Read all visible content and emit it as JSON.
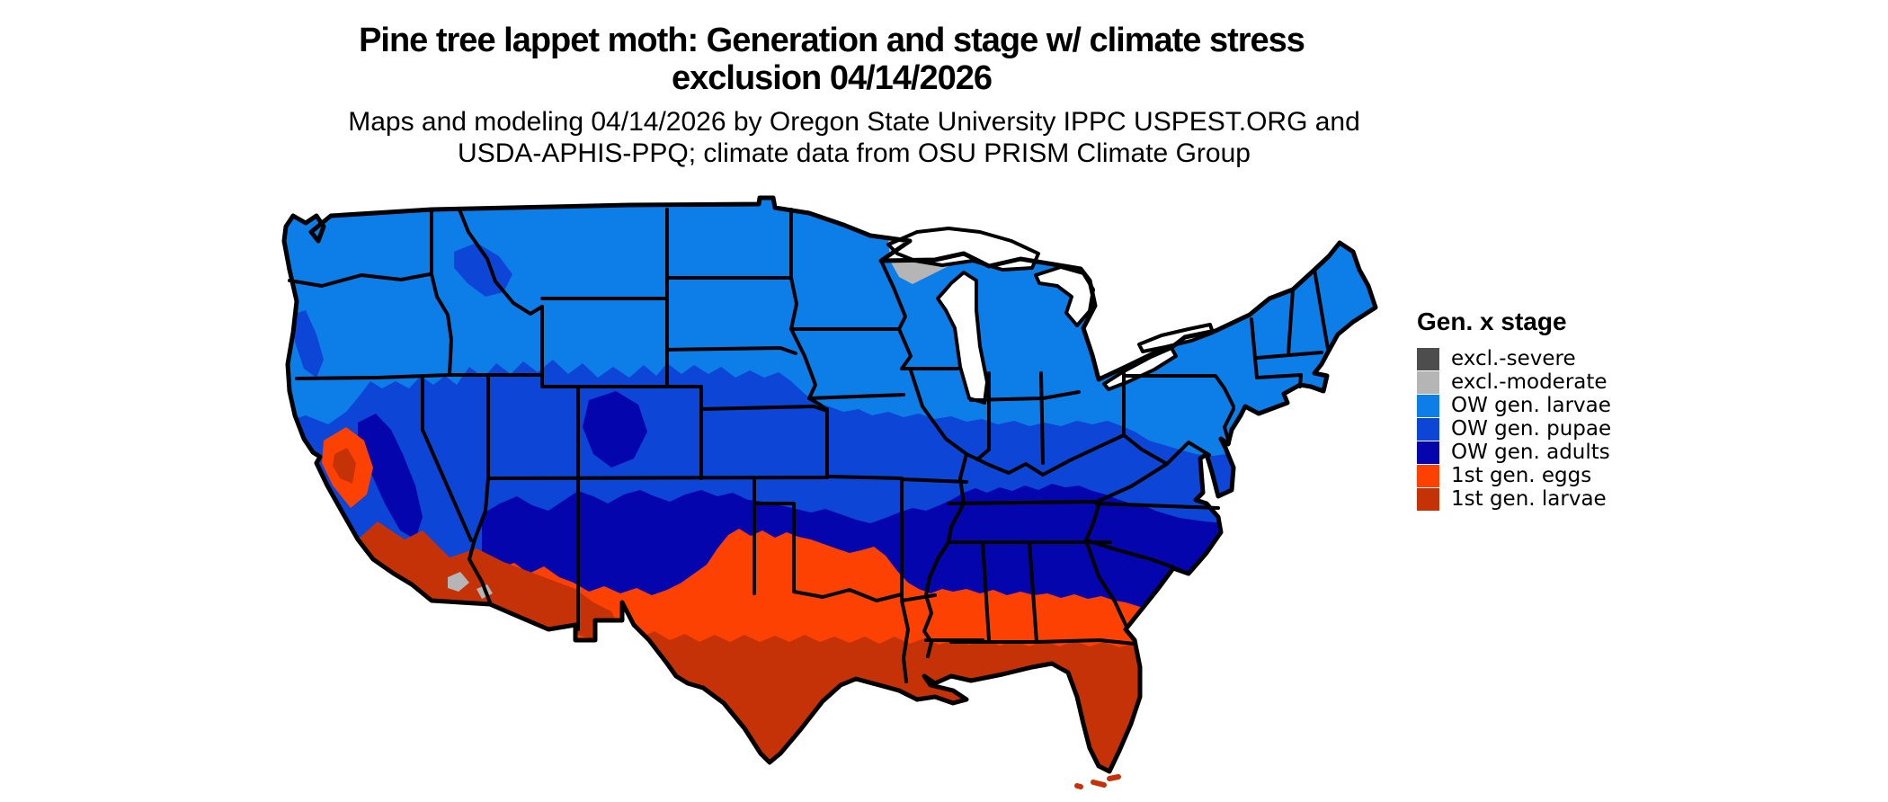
{
  "title": {
    "line1": "Pine tree lappet moth: Generation and stage w/ climate stress",
    "line2": "exclusion 04/14/2026"
  },
  "subtitle": {
    "line1": "Maps and modeling 04/14/2026 by Oregon State University IPPC USPEST.ORG and",
    "line2": "USDA-APHIS-PPQ; climate data from OSU PRISM Climate Group"
  },
  "legend": {
    "title": "Gen. x stage",
    "items": [
      {
        "label": "excl.-severe",
        "color": "#4d4d4d"
      },
      {
        "label": "excl.-moderate",
        "color": "#b5b5b5"
      },
      {
        "label": "OW gen. larvae",
        "color": "#0d7ee8"
      },
      {
        "label": "OW gen. pupae",
        "color": "#0d45d6"
      },
      {
        "label": "OW gen. adults",
        "color": "#0505ad"
      },
      {
        "label": "1st gen. eggs",
        "color": "#fd4103"
      },
      {
        "label": "1st gen. larvae",
        "color": "#c63208"
      }
    ]
  },
  "map": {
    "region": "Contiguous United States",
    "model_date": "04/14/2026",
    "palette": {
      "severe": "#4d4d4d",
      "moderate": "#b5b5b5",
      "owlarvae": "#0d7ee8",
      "owpupae": "#0d45d6",
      "owadults": "#0505ad",
      "eggs1": "#fd4103",
      "larvae1": "#c63208",
      "water": "#ffffff",
      "border": "#000000"
    }
  }
}
